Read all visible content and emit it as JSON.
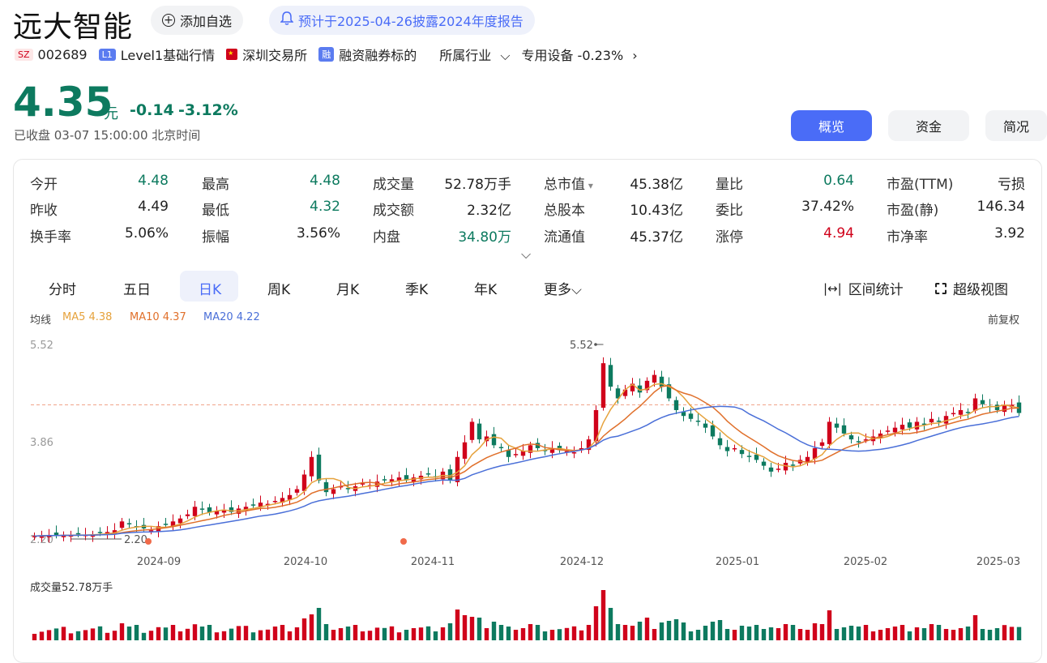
{
  "header": {
    "stock_name": "远大智能",
    "add_watchlist": "添加自选",
    "notice": "预计于2025-04-26披露2024年度报告"
  },
  "meta": {
    "exchange_badge": "SZ",
    "code": "002689",
    "level_badge": "L1",
    "level_text": "Level1基础行情",
    "market": "深圳交易所",
    "margin_badge": "融",
    "margin_text": "融资融券标的",
    "industry_label": "所属行业",
    "industry_value": "专用设备 -0.23%"
  },
  "quote": {
    "price": "4.35",
    "unit": "元",
    "change": "-0.14",
    "change_pct": "-3.12%",
    "status": "已收盘 03-07 15:00:00 北京时间"
  },
  "view_tabs": [
    "概览",
    "资金",
    "简况"
  ],
  "stats": [
    [
      {
        "label": "今开",
        "value": "4.48",
        "color": "#0d7a5f"
      },
      {
        "label": "最高",
        "value": "4.48",
        "color": "#0d7a5f"
      },
      {
        "label": "成交量",
        "value": "52.78万手",
        "color": "#222"
      },
      {
        "label": "总市值",
        "value": "45.38亿",
        "color": "#222"
      },
      {
        "label": "量比",
        "value": "0.64",
        "color": "#0d7a5f"
      },
      {
        "label": "市盈(TTM)",
        "value": "亏损",
        "color": "#222"
      }
    ],
    [
      {
        "label": "昨收",
        "value": "4.49",
        "color": "#222"
      },
      {
        "label": "最低",
        "value": "4.32",
        "color": "#0d7a5f"
      },
      {
        "label": "成交额",
        "value": "2.32亿",
        "color": "#222"
      },
      {
        "label": "总股本",
        "value": "10.43亿",
        "color": "#222"
      },
      {
        "label": "委比",
        "value": "37.42%",
        "color": "#222"
      },
      {
        "label": "市盈(静)",
        "value": "146.34",
        "color": "#222"
      }
    ],
    [
      {
        "label": "换手率",
        "value": "5.06%",
        "color": "#222"
      },
      {
        "label": "振幅",
        "value": "3.56%",
        "color": "#222"
      },
      {
        "label": "内盘",
        "value": "34.80万",
        "color": "#0d7a5f"
      },
      {
        "label": "流通值",
        "value": "45.37亿",
        "color": "#222"
      },
      {
        "label": "涨停",
        "value": "4.94",
        "color": "#d0021b"
      },
      {
        "label": "市净率",
        "value": "3.92",
        "color": "#222"
      }
    ]
  ],
  "periods": [
    "分时",
    "五日",
    "日K",
    "周K",
    "月K",
    "季K",
    "年K",
    "更多"
  ],
  "chart_tools": {
    "interval": "区间统计",
    "super": "超级视图"
  },
  "ma": {
    "label": "均线",
    "ma5": "MA5 4.38",
    "ma10": "MA10 4.37",
    "ma20": "MA20 4.22",
    "adjust": "前复权"
  },
  "colors": {
    "up": "#d0021b",
    "down": "#0d7a5f",
    "ma5": "#e6a23c",
    "ma10": "#e0702b",
    "ma20": "#4a6fd8",
    "accent": "#4a6cf7"
  },
  "chart_data": {
    "type": "candlestick",
    "y_ticks": [
      "5.52",
      "3.86",
      "2.20"
    ],
    "ylim": [
      2.2,
      5.52
    ],
    "x_ticks": [
      "2024-09",
      "2024-10",
      "2024-11",
      "2024-12",
      "2025-01",
      "2025-02",
      "2025-03"
    ],
    "high_label": "5.52",
    "low_label": "2.20",
    "reference_price": 4.49,
    "closes": [
      2.25,
      2.26,
      2.27,
      2.26,
      2.27,
      2.26,
      2.28,
      2.27,
      2.28,
      2.3,
      2.32,
      2.35,
      2.5,
      2.45,
      2.4,
      2.38,
      2.35,
      2.42,
      2.45,
      2.5,
      2.55,
      2.62,
      2.75,
      2.7,
      2.65,
      2.68,
      2.7,
      2.66,
      2.72,
      2.75,
      2.78,
      2.82,
      2.8,
      2.85,
      2.9,
      2.95,
      3.05,
      3.3,
      3.6,
      3.2,
      3.0,
      3.05,
      3.1,
      3.05,
      3.1,
      3.15,
      3.12,
      3.18,
      3.2,
      3.22,
      3.25,
      3.2,
      3.25,
      3.28,
      3.3,
      3.25,
      3.35,
      3.2,
      3.6,
      3.85,
      4.2,
      3.9,
      3.95,
      3.8,
      3.75,
      3.6,
      3.65,
      3.7,
      3.8,
      3.75,
      3.7,
      3.75,
      3.72,
      3.7,
      3.68,
      3.75,
      3.9,
      4.4,
      5.2,
      4.8,
      4.6,
      4.75,
      4.85,
      4.7,
      4.9,
      5.0,
      4.8,
      4.6,
      4.4,
      4.3,
      4.25,
      4.2,
      4.1,
      3.95,
      3.8,
      3.7,
      3.75,
      3.65,
      3.6,
      3.55,
      3.45,
      3.35,
      3.4,
      3.5,
      3.45,
      3.55,
      3.6,
      3.75,
      3.85,
      4.2,
      4.1,
      4.0,
      3.9,
      3.85,
      3.9,
      3.95,
      4.0,
      4.05,
      4.1,
      4.15,
      4.1,
      4.2,
      4.15,
      4.25,
      4.2,
      4.3,
      4.35,
      4.4,
      4.35,
      4.6,
      4.5,
      4.45,
      4.4,
      4.48,
      4.49,
      4.35
    ],
    "volume_label": "成交量52.78万手"
  }
}
